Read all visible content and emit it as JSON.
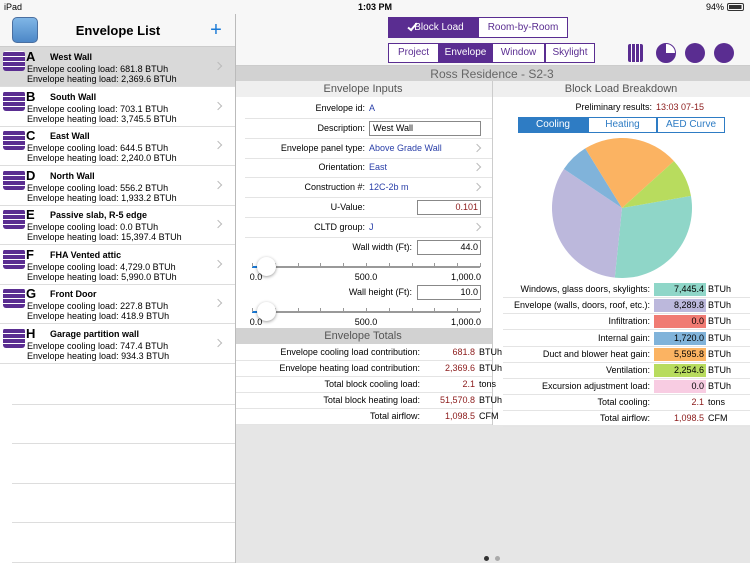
{
  "status": {
    "carrier": "iPad",
    "time": "1:03 PM",
    "battery": "94%"
  },
  "sidebar": {
    "title": "Envelope List",
    "add": "+",
    "items": [
      {
        "letter": "A",
        "name": "West Wall",
        "cooling": "Envelope cooling load: 681.8 BTUh",
        "heating": "Envelope heating load: 2,369.6 BTUh"
      },
      {
        "letter": "B",
        "name": "South Wall",
        "cooling": "Envelope cooling load: 703.1 BTUh",
        "heating": "Envelope heating load: 3,745.5 BTUh"
      },
      {
        "letter": "C",
        "name": "East Wall",
        "cooling": "Envelope cooling load: 644.5 BTUh",
        "heating": "Envelope heating load: 2,240.0 BTUh"
      },
      {
        "letter": "D",
        "name": "North Wall",
        "cooling": "Envelope cooling load: 556.2 BTUh",
        "heating": "Envelope heating load: 1,933.2 BTUh"
      },
      {
        "letter": "E",
        "name": "Passive slab, R-5 edge",
        "cooling": "Envelope cooling load: 0.0 BTUh",
        "heating": "Envelope heating load: 15,397.4 BTUh"
      },
      {
        "letter": "F",
        "name": "FHA Vented attic",
        "cooling": "Envelope cooling load: 4,729.0 BTUh",
        "heating": "Envelope heating load: 5,990.0 BTUh"
      },
      {
        "letter": "G",
        "name": "Front Door",
        "cooling": "Envelope cooling load: 227.8 BTUh",
        "heating": "Envelope heating load: 418.9 BTUh"
      },
      {
        "letter": "H",
        "name": "Garage partition wall",
        "cooling": "Envelope cooling load: 747.4 BTUh",
        "heating": "Envelope heating load: 934.3 BTUh"
      }
    ]
  },
  "toolbar": {
    "modes": [
      "Block Load",
      "Room-by-Room"
    ],
    "tabs": [
      "Project",
      "Envelope",
      "Window",
      "Skylight"
    ]
  },
  "project_title": "Ross Residence - S2-3",
  "inputs": {
    "title": "Envelope Inputs",
    "fields": [
      {
        "label": "Envelope id:",
        "value": "A"
      },
      {
        "label": "Description:",
        "value": "West Wall"
      },
      {
        "label": "Envelope panel type:",
        "value": "Above Grade Wall"
      },
      {
        "label": "Orientation:",
        "value": "East"
      },
      {
        "label": "Construction #:",
        "value": "12C-2b m"
      },
      {
        "label": "U-Value:",
        "value": "0.101"
      },
      {
        "label": "CLTD group:",
        "value": "J"
      }
    ],
    "sliders": [
      {
        "label": "Wall width (Ft):",
        "value": "44.0",
        "ticks": [
          "0.0",
          "500.0",
          "1,000.0"
        ]
      },
      {
        "label": "Wall height (Ft):",
        "value": "10.0",
        "ticks": [
          "0.0",
          "500.0",
          "1,000.0"
        ]
      }
    ]
  },
  "totals": {
    "title": "Envelope Totals",
    "rows": [
      {
        "label": "Envelope cooling load contribution:",
        "value": "681.8",
        "unit": "BTUh"
      },
      {
        "label": "Envelope heating load contribution:",
        "value": "2,369.6",
        "unit": "BTUh"
      },
      {
        "label": "Total block cooling load:",
        "value": "2.1",
        "unit": "tons"
      },
      {
        "label": "Total block heating load:",
        "value": "51,570.8",
        "unit": "BTUh"
      },
      {
        "label": "Total airflow:",
        "value": "1,098.5",
        "unit": "CFM"
      }
    ]
  },
  "breakdown": {
    "title": "Block Load Breakdown",
    "preliminary": {
      "label": "Preliminary results:",
      "value": "13:03 07-15"
    },
    "tabs": [
      "Cooling",
      "Heating",
      "AED Curve"
    ],
    "rows": [
      {
        "label": "Windows, glass doors, skylights:",
        "value": 7445.4,
        "value_label": "7,445.4",
        "unit": "BTUh",
        "color": "#8fd6c8"
      },
      {
        "label": "Envelope (walls, doors, roof, etc.):",
        "value": 8289.8,
        "value_label": "8,289.8",
        "unit": "BTUh",
        "color": "#bcb8dc"
      },
      {
        "label": "Infiltration:",
        "value": 0,
        "value_label": "0.0",
        "unit": "BTUh",
        "color": "#f07b73"
      },
      {
        "label": "Internal gain:",
        "value": 1720.0,
        "value_label": "1,720.0",
        "unit": "BTUh",
        "color": "#80b3da"
      },
      {
        "label": "Duct and blower heat gain:",
        "value": 5595.8,
        "value_label": "5,595.8",
        "unit": "BTUh",
        "color": "#fbb362"
      },
      {
        "label": "Ventilation:",
        "value": 2254.6,
        "value_label": "2,254.6",
        "unit": "BTUh",
        "color": "#b8dc5e"
      },
      {
        "label": "Excursion adjustment load:",
        "value": 0,
        "value_label": "0.0",
        "unit": "BTUh",
        "color": "#f8cce2"
      }
    ],
    "totals": [
      {
        "label": "Total cooling:",
        "value": "2.1",
        "unit": "tons"
      },
      {
        "label": "Total airflow:",
        "value": "1,098.5",
        "unit": "CFM"
      }
    ]
  }
}
